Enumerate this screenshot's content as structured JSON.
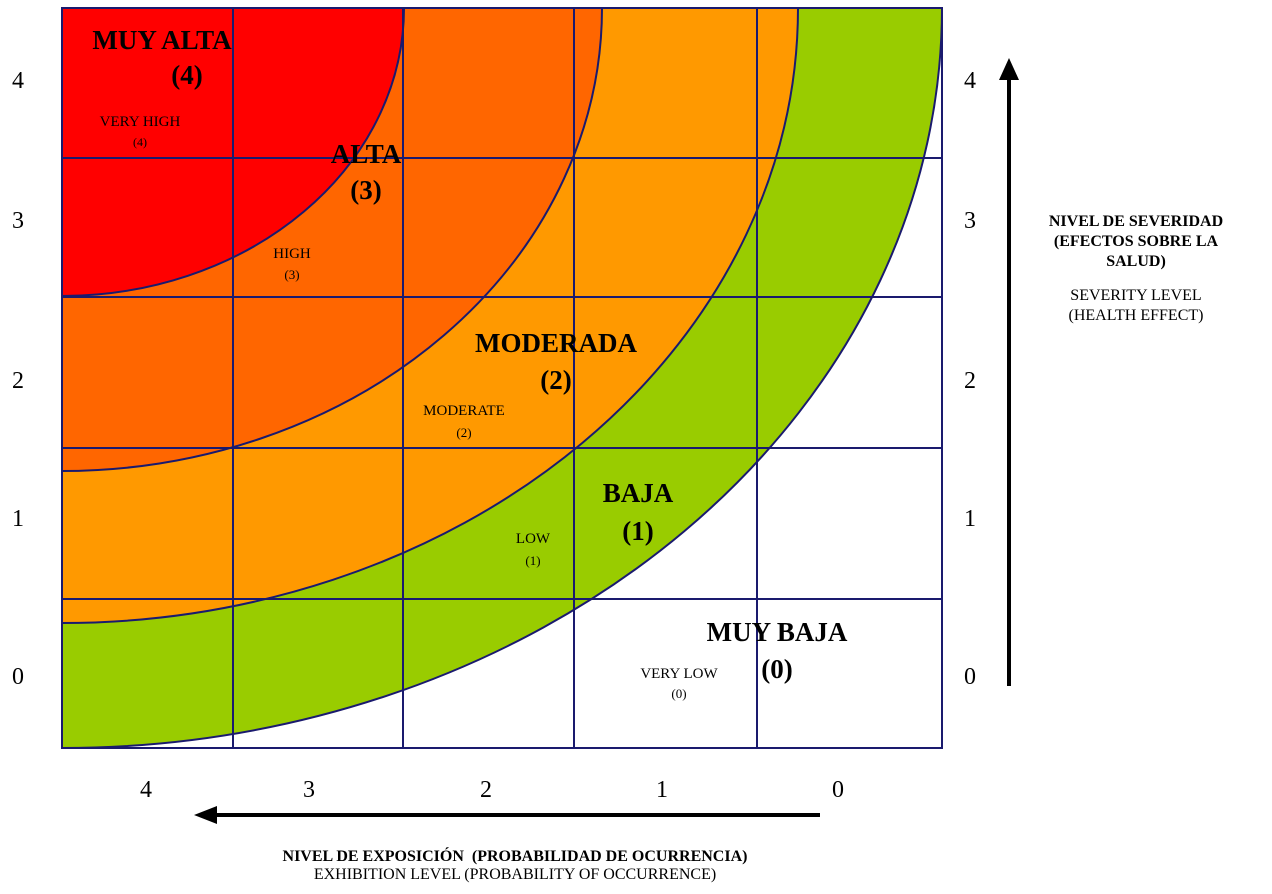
{
  "colors": {
    "very_high": "#ff0000",
    "high": "#ff6600",
    "moderate": "#ff9900",
    "low": "#99cc00",
    "very_low": "#ffffff",
    "grid": "#1a1a6e",
    "arrow": "#000000"
  },
  "zones": [
    {
      "id": "very-high",
      "title": "MUY ALTA",
      "level": "(4)",
      "en": "VERY HIGH",
      "en_level": "(4)"
    },
    {
      "id": "high",
      "title": "ALTA",
      "level": "(3)",
      "en": "HIGH",
      "en_level": "(3)"
    },
    {
      "id": "moderate",
      "title": "MODERADA",
      "level": "(2)",
      "en": "MODERATE",
      "en_level": "(2)"
    },
    {
      "id": "low",
      "title": "BAJA",
      "level": "(1)",
      "en": "LOW",
      "en_level": "(1)"
    },
    {
      "id": "very-low",
      "title": "MUY BAJA",
      "level": "(0)",
      "en": "VERY LOW",
      "en_level": "(0)"
    }
  ],
  "y_ticks_left": [
    "4",
    "3",
    "2",
    "1",
    "0"
  ],
  "y_ticks_right": [
    "4",
    "3",
    "2",
    "1",
    "0"
  ],
  "x_ticks": [
    "4",
    "3",
    "2",
    "1",
    "0"
  ],
  "severity_title": {
    "line1": "NIVEL DE SEVERIDAD",
    "line2": "(EFECTOS SOBRE LA",
    "line3": "SALUD)",
    "en1": "SEVERITY LEVEL",
    "en2": "(HEALTH EFFECT)"
  },
  "exposure_title": {
    "es": "NIVEL DE EXPOSICIÓN  (PROBABILIDAD DE OCURRENCIA)",
    "en": "EXHIBITION LEVEL (PROBABILITY OF OCCURRENCE)"
  }
}
